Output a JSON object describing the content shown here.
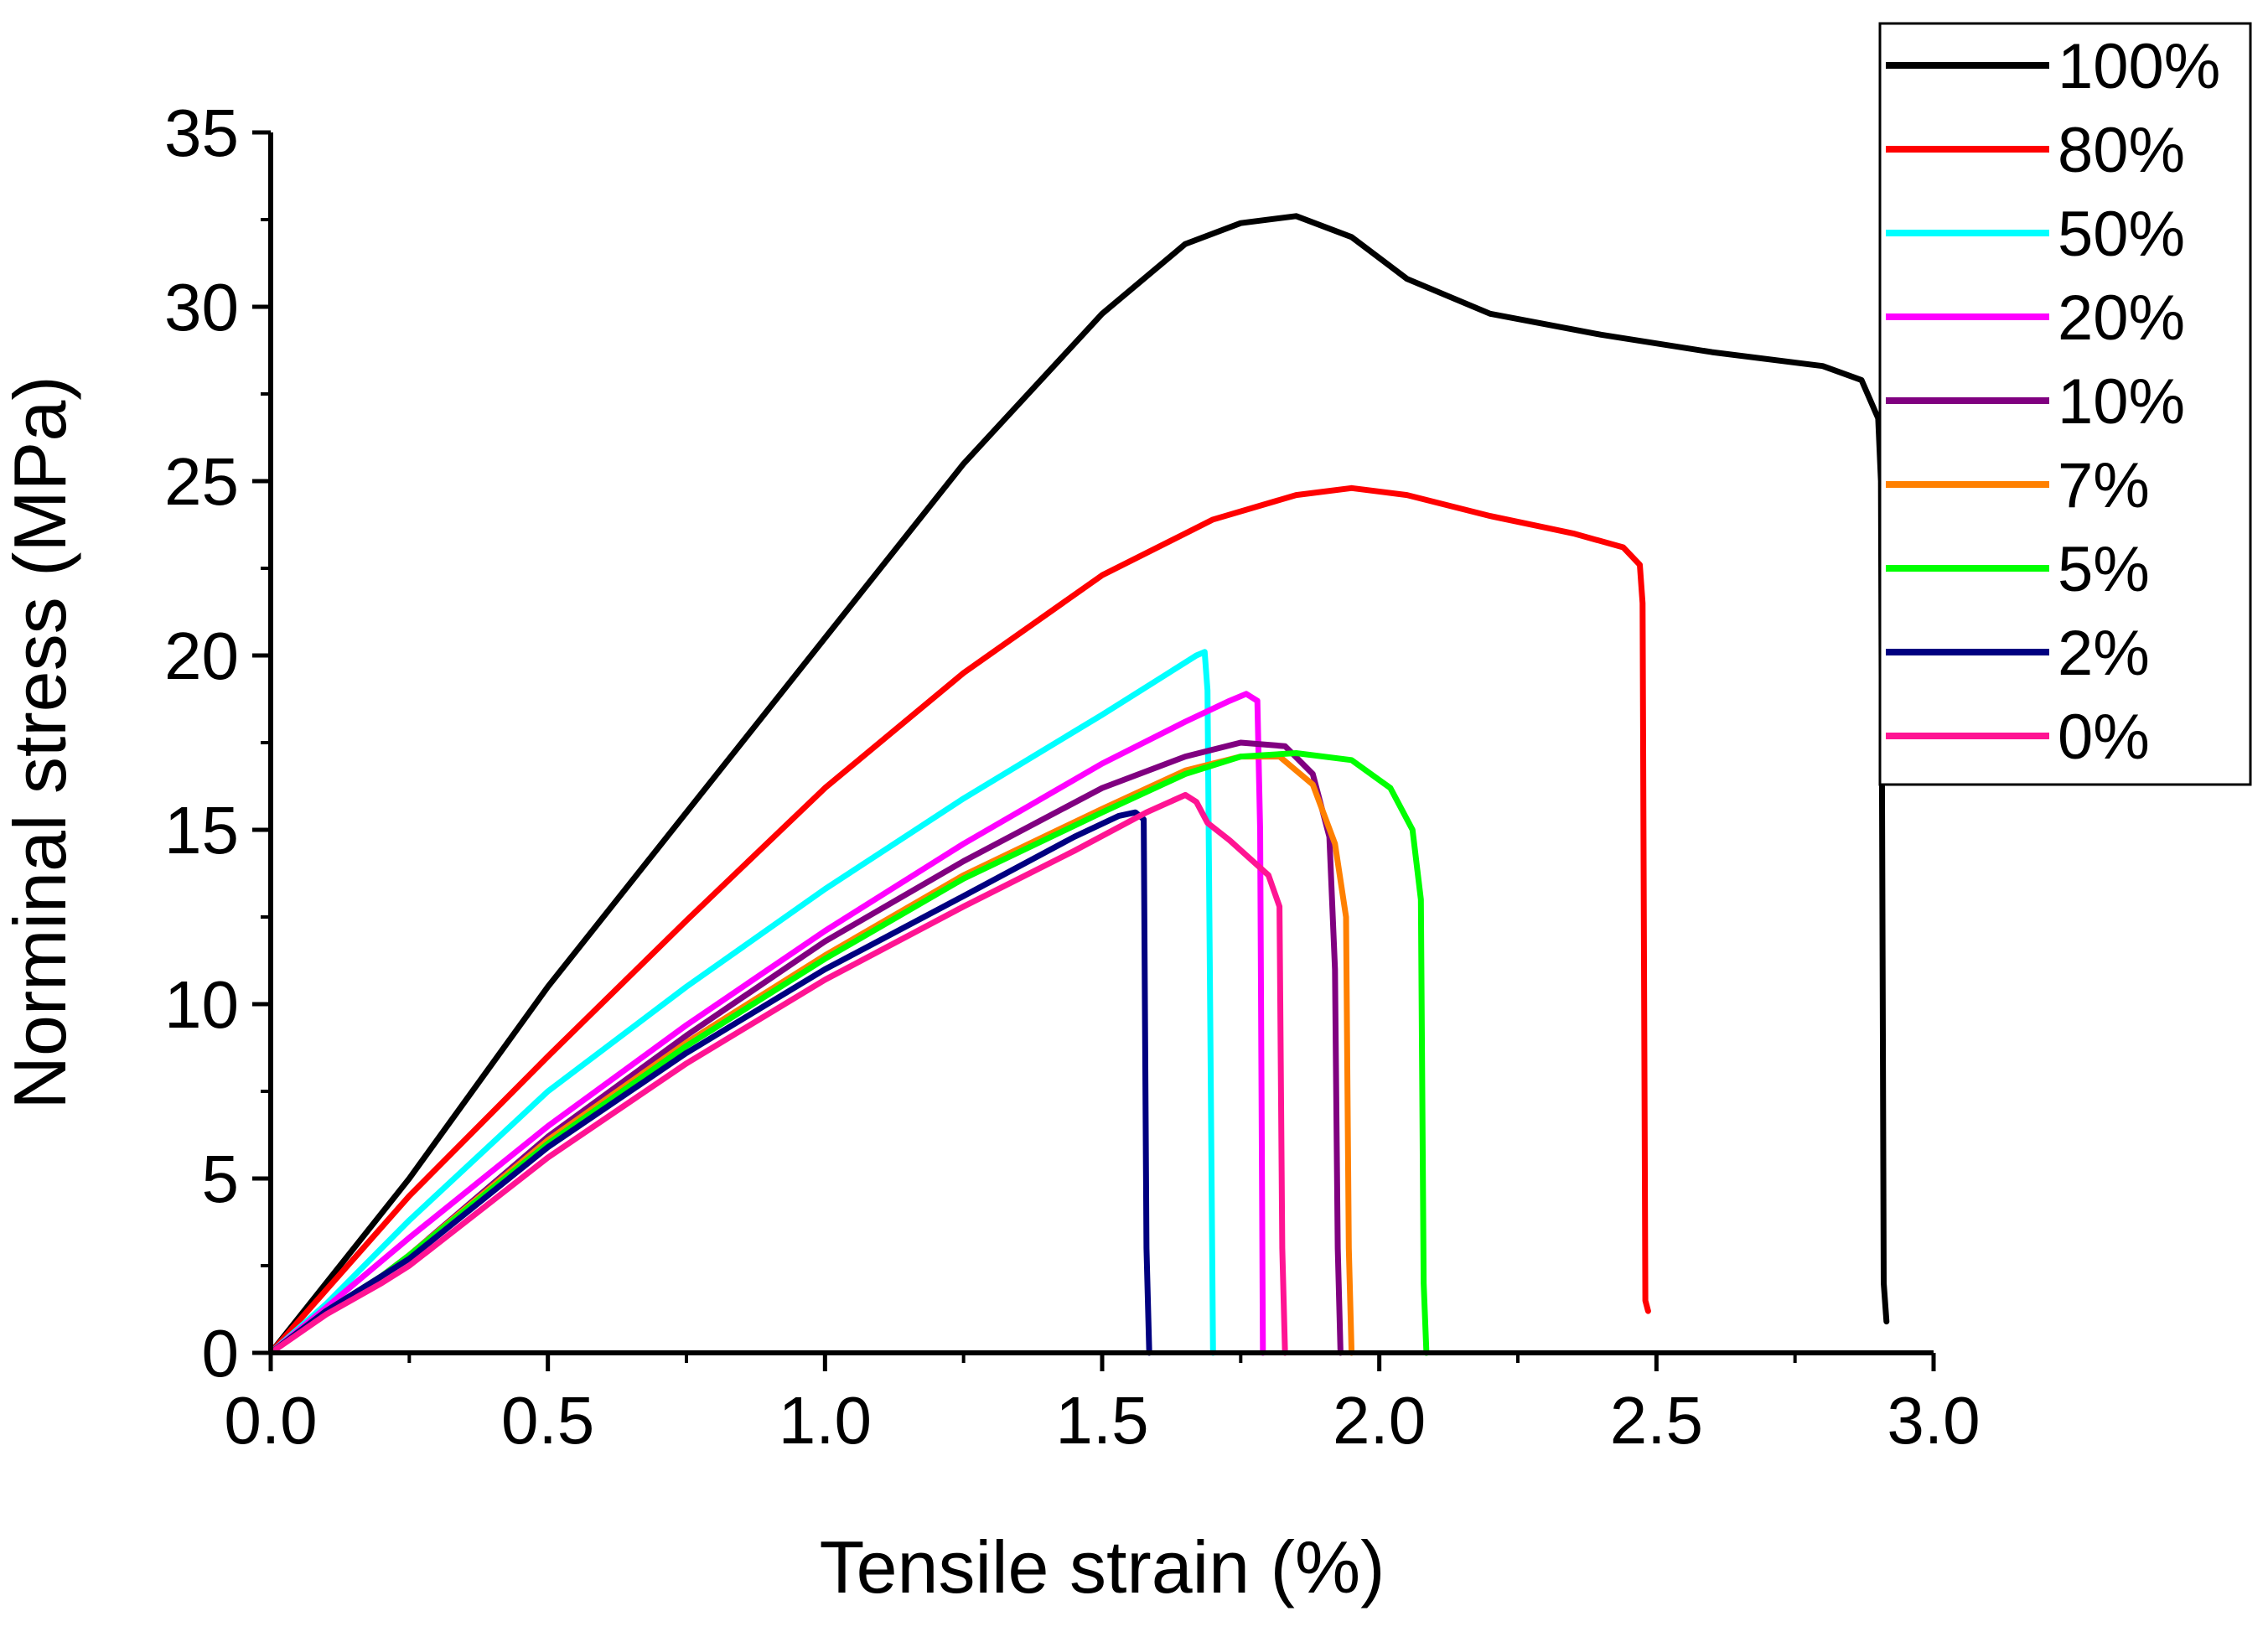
{
  "chart_data": {
    "type": "line",
    "title": "",
    "xlabel": "Tensile strain (%)",
    "ylabel": "Norminal stress (MPa)",
    "xlim": [
      0,
      3.0
    ],
    "ylim": [
      0,
      35
    ],
    "x_ticks": [
      0.0,
      0.5,
      1.0,
      1.5,
      2.0,
      2.5,
      3.0
    ],
    "x_tick_labels": [
      "0.0",
      "0.5",
      "1.0",
      "1.5",
      "2.0",
      "2.5",
      "3.0"
    ],
    "y_ticks": [
      0,
      5,
      10,
      15,
      20,
      25,
      30,
      35
    ],
    "y_tick_labels": [
      "0",
      "5",
      "10",
      "15",
      "20",
      "25",
      "30",
      "35"
    ],
    "grid": false,
    "legend_position": "top-right",
    "series": [
      {
        "name": "100%",
        "color": "#000000",
        "points": [
          [
            0,
            0
          ],
          [
            0.1,
            2
          ],
          [
            0.25,
            5
          ],
          [
            0.5,
            10.5
          ],
          [
            0.75,
            15.5
          ],
          [
            1.0,
            20.5
          ],
          [
            1.25,
            25.5
          ],
          [
            1.5,
            29.8
          ],
          [
            1.65,
            31.8
          ],
          [
            1.75,
            32.4
          ],
          [
            1.85,
            32.6
          ],
          [
            1.95,
            32
          ],
          [
            2.05,
            30.8
          ],
          [
            2.2,
            29.8
          ],
          [
            2.4,
            29.2
          ],
          [
            2.6,
            28.7
          ],
          [
            2.8,
            28.3
          ],
          [
            2.87,
            27.9
          ],
          [
            2.9,
            26.8
          ],
          [
            2.905,
            25
          ],
          [
            2.91,
            2
          ],
          [
            2.915,
            0.9
          ]
        ]
      },
      {
        "name": "80%",
        "color": "#ff0000",
        "points": [
          [
            0,
            0
          ],
          [
            0.1,
            1.8
          ],
          [
            0.25,
            4.5
          ],
          [
            0.5,
            8.5
          ],
          [
            0.75,
            12.4
          ],
          [
            1.0,
            16.2
          ],
          [
            1.25,
            19.5
          ],
          [
            1.5,
            22.3
          ],
          [
            1.7,
            23.9
          ],
          [
            1.85,
            24.6
          ],
          [
            1.95,
            24.8
          ],
          [
            2.05,
            24.6
          ],
          [
            2.2,
            24
          ],
          [
            2.35,
            23.5
          ],
          [
            2.44,
            23.1
          ],
          [
            2.47,
            22.6
          ],
          [
            2.475,
            21.5
          ],
          [
            2.48,
            1.5
          ],
          [
            2.485,
            1.2
          ]
        ]
      },
      {
        "name": "50%",
        "color": "#00ffff",
        "points": [
          [
            0,
            0
          ],
          [
            0.1,
            1.4
          ],
          [
            0.25,
            3.8
          ],
          [
            0.5,
            7.5
          ],
          [
            0.75,
            10.5
          ],
          [
            1.0,
            13.3
          ],
          [
            1.25,
            15.9
          ],
          [
            1.5,
            18.3
          ],
          [
            1.62,
            19.5
          ],
          [
            1.67,
            20
          ],
          [
            1.685,
            20.1
          ],
          [
            1.69,
            19
          ],
          [
            1.7,
            0
          ]
        ]
      },
      {
        "name": "20%",
        "color": "#ff00ff",
        "points": [
          [
            0,
            0
          ],
          [
            0.1,
            1.3
          ],
          [
            0.25,
            3.3
          ],
          [
            0.5,
            6.5
          ],
          [
            0.75,
            9.4
          ],
          [
            1.0,
            12.1
          ],
          [
            1.25,
            14.6
          ],
          [
            1.5,
            16.9
          ],
          [
            1.65,
            18.1
          ],
          [
            1.73,
            18.7
          ],
          [
            1.76,
            18.9
          ],
          [
            1.78,
            18.7
          ],
          [
            1.785,
            15
          ],
          [
            1.79,
            0
          ]
        ]
      },
      {
        "name": "10%",
        "color": "#800080",
        "points": [
          [
            0,
            0
          ],
          [
            0.1,
            1.2
          ],
          [
            0.2,
            2.2
          ],
          [
            0.25,
            2.8
          ],
          [
            0.5,
            6.2
          ],
          [
            0.75,
            9.1
          ],
          [
            1.0,
            11.8
          ],
          [
            1.25,
            14.1
          ],
          [
            1.5,
            16.2
          ],
          [
            1.65,
            17.1
          ],
          [
            1.75,
            17.5
          ],
          [
            1.83,
            17.4
          ],
          [
            1.88,
            16.6
          ],
          [
            1.91,
            14.8
          ],
          [
            1.92,
            11
          ],
          [
            1.925,
            3
          ],
          [
            1.93,
            0
          ]
        ]
      },
      {
        "name": "7%",
        "color": "#ff8000",
        "points": [
          [
            0,
            0
          ],
          [
            0.1,
            1.2
          ],
          [
            0.2,
            2.2
          ],
          [
            0.25,
            2.8
          ],
          [
            0.5,
            6.1
          ],
          [
            0.75,
            8.9
          ],
          [
            1.0,
            11.4
          ],
          [
            1.25,
            13.7
          ],
          [
            1.5,
            15.6
          ],
          [
            1.65,
            16.7
          ],
          [
            1.75,
            17.1
          ],
          [
            1.82,
            17.1
          ],
          [
            1.88,
            16.3
          ],
          [
            1.92,
            14.6
          ],
          [
            1.94,
            12.5
          ],
          [
            1.945,
            3
          ],
          [
            1.95,
            0
          ]
        ]
      },
      {
        "name": "5%",
        "color": "#00ff00",
        "points": [
          [
            0,
            0
          ],
          [
            0.1,
            1.2
          ],
          [
            0.2,
            2.2
          ],
          [
            0.25,
            2.8
          ],
          [
            0.5,
            6
          ],
          [
            0.75,
            8.8
          ],
          [
            1.0,
            11.3
          ],
          [
            1.25,
            13.6
          ],
          [
            1.5,
            15.5
          ],
          [
            1.65,
            16.6
          ],
          [
            1.75,
            17.1
          ],
          [
            1.85,
            17.2
          ],
          [
            1.95,
            17
          ],
          [
            2.02,
            16.2
          ],
          [
            2.06,
            15
          ],
          [
            2.075,
            13
          ],
          [
            2.08,
            2
          ],
          [
            2.085,
            0
          ]
        ]
      },
      {
        "name": "2%",
        "color": "#000080",
        "points": [
          [
            0,
            0
          ],
          [
            0.1,
            1.2
          ],
          [
            0.2,
            2.2
          ],
          [
            0.25,
            2.7
          ],
          [
            0.5,
            5.9
          ],
          [
            0.75,
            8.6
          ],
          [
            1.0,
            11
          ],
          [
            1.25,
            13.1
          ],
          [
            1.45,
            14.8
          ],
          [
            1.53,
            15.4
          ],
          [
            1.56,
            15.5
          ],
          [
            1.575,
            15.3
          ],
          [
            1.58,
            3
          ],
          [
            1.585,
            0
          ]
        ]
      },
      {
        "name": "0%",
        "color": "#ff1493",
        "points": [
          [
            0,
            0
          ],
          [
            0.1,
            1.1
          ],
          [
            0.2,
            2
          ],
          [
            0.25,
            2.5
          ],
          [
            0.5,
            5.6
          ],
          [
            0.75,
            8.3
          ],
          [
            1.0,
            10.7
          ],
          [
            1.25,
            12.8
          ],
          [
            1.45,
            14.4
          ],
          [
            1.58,
            15.5
          ],
          [
            1.65,
            16
          ],
          [
            1.67,
            15.8
          ],
          [
            1.69,
            15.2
          ],
          [
            1.73,
            14.7
          ],
          [
            1.8,
            13.7
          ],
          [
            1.82,
            12.8
          ],
          [
            1.825,
            3
          ],
          [
            1.83,
            0
          ]
        ]
      }
    ]
  }
}
